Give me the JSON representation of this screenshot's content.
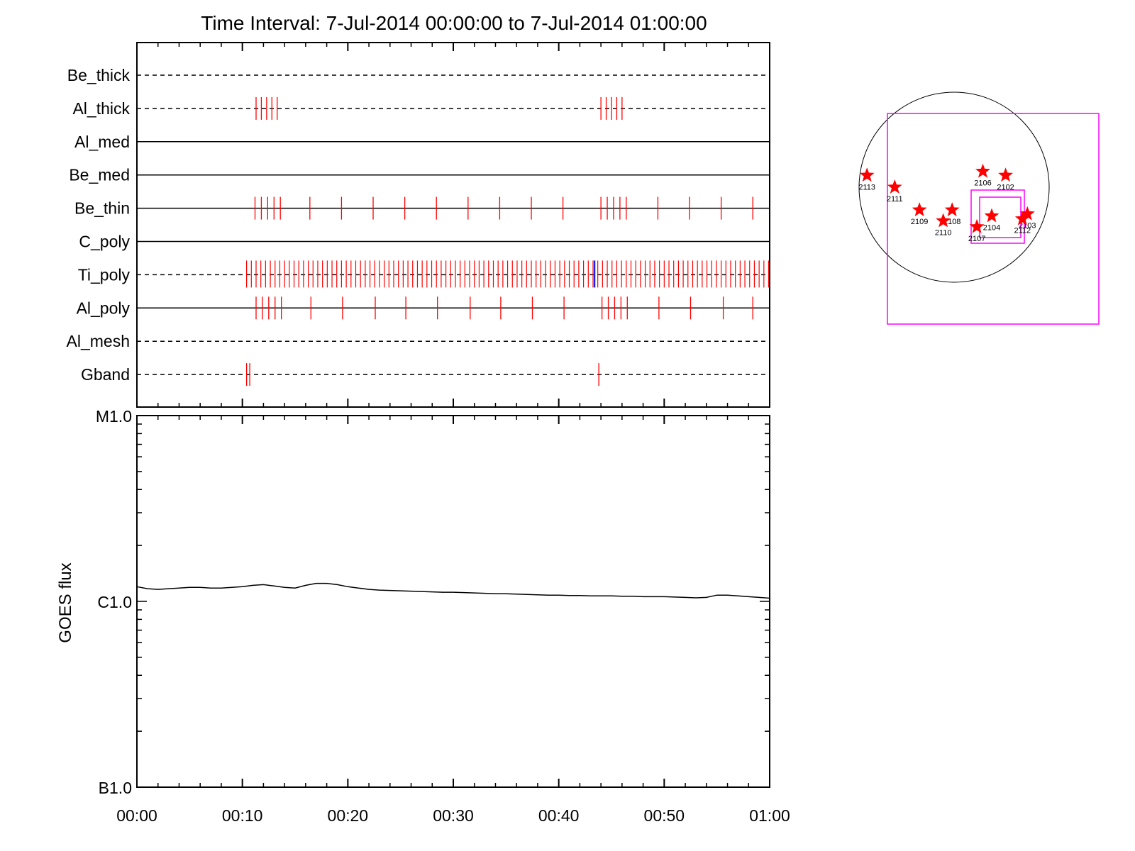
{
  "title": "Time Interval:  7-Jul-2014 00:00:00 to  7-Jul-2014 01:00:00",
  "colors": {
    "exposure": "#ff0000",
    "highlight": "#0000ff",
    "box": "#ff00ff",
    "axis": "#000000"
  },
  "chart_data": [
    {
      "type": "event-timeline",
      "xlim_minutes": [
        0,
        60
      ],
      "channels": [
        {
          "name": "Be_thick",
          "line": "dashed",
          "events": []
        },
        {
          "name": "Al_thick",
          "line": "dashed",
          "events": [
            11.3,
            11.8,
            12.3,
            12.8,
            13.3,
            44.0,
            44.5,
            45.0,
            45.5,
            46.0
          ]
        },
        {
          "name": "Al_med",
          "line": "solid",
          "events": []
        },
        {
          "name": "Be_med",
          "line": "solid",
          "events": []
        },
        {
          "name": "Be_thin",
          "line": "solid",
          "events": [
            11.2,
            11.8,
            12.4,
            13.0,
            13.6,
            16.4,
            19.4,
            22.4,
            25.4,
            28.4,
            31.4,
            34.4,
            37.4,
            40.4,
            44.0,
            44.6,
            45.2,
            45.8,
            46.4,
            49.4,
            52.4,
            55.4,
            58.4
          ]
        },
        {
          "name": "C_poly",
          "line": "solid",
          "events": []
        },
        {
          "name": "Ti_poly",
          "line": "dashed",
          "events": [],
          "dense_range": [
            10.4,
            60.0
          ],
          "dense_step": 0.45,
          "highlight_events": [
            43.4
          ]
        },
        {
          "name": "Al_poly",
          "line": "solid",
          "events": [
            11.3,
            11.9,
            12.5,
            13.1,
            13.7,
            16.5,
            19.5,
            22.6,
            25.5,
            28.5,
            31.6,
            34.5,
            37.5,
            40.5,
            44.1,
            44.7,
            45.3,
            45.9,
            46.5,
            49.5,
            52.5,
            55.6,
            58.4
          ]
        },
        {
          "name": "Al_mesh",
          "line": "dashed",
          "events": []
        },
        {
          "name": "Gband",
          "line": "dashed",
          "events": [
            10.4,
            10.7,
            43.8
          ]
        }
      ]
    },
    {
      "type": "line",
      "ylabel": "GOES flux",
      "scale": "log",
      "ylim": [
        1e-07,
        1e-05
      ],
      "yticks": [
        {
          "label": "M1.0",
          "value": 1e-05
        },
        {
          "label": "C1.0",
          "value": 1e-06
        },
        {
          "label": "B1.0",
          "value": 1e-07
        }
      ],
      "xticks": [
        "00:00",
        "00:10",
        "00:20",
        "00:30",
        "00:40",
        "00:50",
        "01:00"
      ],
      "xlim_minutes": [
        0,
        60
      ],
      "series": [
        {
          "x": [
            0,
            1,
            2,
            3,
            4,
            5,
            6,
            7,
            8,
            9,
            10,
            11,
            12,
            13,
            14,
            15,
            16,
            17,
            18,
            19,
            20,
            21,
            22,
            23,
            24,
            25,
            26,
            27,
            28,
            29,
            30,
            31,
            32,
            33,
            34,
            35,
            36,
            37,
            38,
            39,
            40,
            41,
            42,
            43,
            44,
            45,
            46,
            47,
            48,
            49,
            50,
            51,
            52,
            53,
            54,
            55,
            56,
            57,
            58,
            59,
            60
          ],
          "y": [
            1.2e-06,
            1.17e-06,
            1.16e-06,
            1.17e-06,
            1.18e-06,
            1.19e-06,
            1.19e-06,
            1.18e-06,
            1.18e-06,
            1.19e-06,
            1.2e-06,
            1.22e-06,
            1.23e-06,
            1.21e-06,
            1.19e-06,
            1.18e-06,
            1.22e-06,
            1.25e-06,
            1.25e-06,
            1.23e-06,
            1.2e-06,
            1.18e-06,
            1.16e-06,
            1.15e-06,
            1.145e-06,
            1.14e-06,
            1.135e-06,
            1.13e-06,
            1.125e-06,
            1.12e-06,
            1.12e-06,
            1.115e-06,
            1.11e-06,
            1.105e-06,
            1.1e-06,
            1.1e-06,
            1.095e-06,
            1.09e-06,
            1.085e-06,
            1.08e-06,
            1.08e-06,
            1.075e-06,
            1.075e-06,
            1.07e-06,
            1.07e-06,
            1.07e-06,
            1.065e-06,
            1.065e-06,
            1.06e-06,
            1.06e-06,
            1.06e-06,
            1.055e-06,
            1.05e-06,
            1.045e-06,
            1.05e-06,
            1.08e-06,
            1.08e-06,
            1.07e-06,
            1.06e-06,
            1.05e-06,
            1.04e-06
          ]
        }
      ]
    }
  ],
  "solar_map": {
    "disk": {
      "visible": true
    },
    "regions": [
      {
        "label": "2113",
        "x": -880,
        "y": 120
      },
      {
        "label": "2111",
        "x": -600,
        "y": 0
      },
      {
        "label": "2109",
        "x": -350,
        "y": -230
      },
      {
        "label": "2108",
        "x": -20,
        "y": -230
      },
      {
        "label": "2110",
        "x": -110,
        "y": -340
      },
      {
        "label": "2107",
        "x": 230,
        "y": -400
      },
      {
        "label": "2104",
        "x": 380,
        "y": -290
      },
      {
        "label": "2106",
        "x": 290,
        "y": 160
      },
      {
        "label": "2102",
        "x": 520,
        "y": 120
      },
      {
        "label": "2103",
        "x": 740,
        "y": -270
      },
      {
        "label": "2112",
        "x": 690,
        "y": -320
      }
    ]
  }
}
